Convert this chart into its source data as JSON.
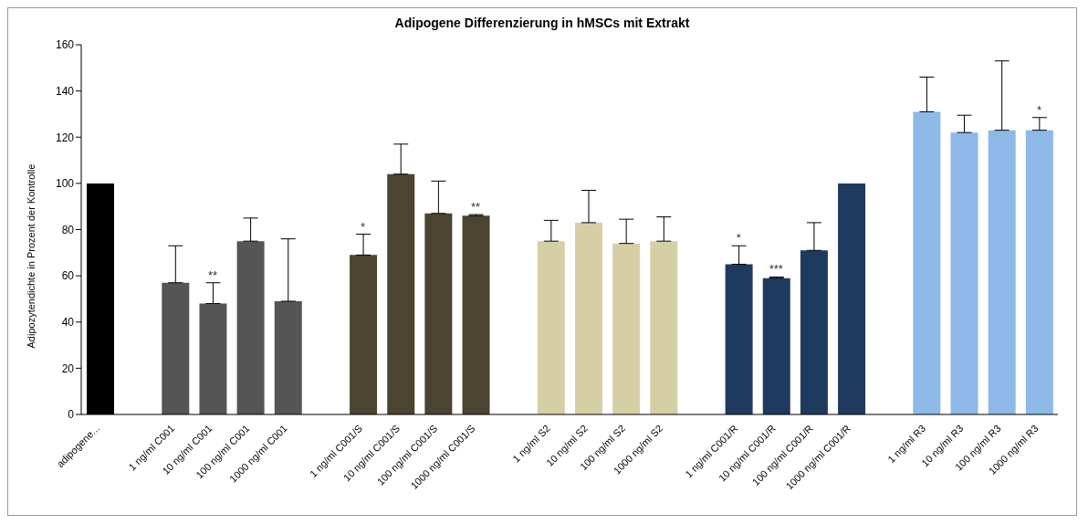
{
  "chart_data": {
    "type": "bar",
    "title": "Adipogene Differenzierung in hMSCs mit Extrakt",
    "ylabel": "Adipozytendichte in Prozent der Kontrolle",
    "categories": [
      "adipogene...",
      null,
      "1 ng/ml C001",
      "10 ng/ml C001",
      "100 ng/ml C001",
      "1000 ng/ml C001",
      null,
      "1 ng/ml C001/S",
      "10 ng/ml C001/S",
      "100 ng/ml C001/S",
      "1000 ng/ml C001/S",
      null,
      "1 ng/ml S2",
      "10 ng/ml S2",
      "100 ng/ml S2",
      "1000 ng/ml S2",
      null,
      "1 ng/ml C001/R",
      "10 ng/ml C001/R",
      "100 ng/ml C001/R",
      "1000 ng/ml C001/R",
      null,
      "1 ng/ml R3",
      "10 ng/ml R3",
      "100 ng/ml R3",
      "1000 ng/ml R3"
    ],
    "values": [
      100,
      null,
      57,
      48,
      75,
      49,
      null,
      69,
      104,
      87,
      86,
      null,
      75,
      83,
      74,
      75,
      null,
      65,
      59,
      71,
      100,
      null,
      131,
      122,
      123,
      123
    ],
    "errors": [
      null,
      null,
      [
        57,
        73
      ],
      [
        48,
        57
      ],
      [
        75,
        85
      ],
      [
        49,
        76
      ],
      null,
      [
        69,
        78
      ],
      [
        104,
        117
      ],
      [
        87,
        101
      ],
      [
        86,
        86.5
      ],
      null,
      [
        75,
        84
      ],
      [
        83,
        97
      ],
      [
        74,
        84.5
      ],
      [
        75,
        85.5
      ],
      null,
      [
        65,
        73
      ],
      [
        59,
        59.5
      ],
      [
        71,
        83
      ],
      null,
      null,
      [
        131,
        146
      ],
      [
        122,
        129.5
      ],
      [
        123,
        153
      ],
      [
        123,
        128.5
      ]
    ],
    "colors": [
      "#000000",
      null,
      "#555555",
      "#555555",
      "#555555",
      "#555555",
      null,
      "#4a4430",
      "#4a4430",
      "#4a4430",
      "#4a4430",
      null,
      "#d6cfa5",
      "#d6cfa5",
      "#d6cfa5",
      "#d6cfa5",
      null,
      "#1f3a5f",
      "#1f3a5f",
      "#1f3a5f",
      "#1f3a5f",
      null,
      "#8db8e8",
      "#8db8e8",
      "#8db8e8",
      "#8db8e8"
    ],
    "ylim": [
      0,
      160
    ],
    "yticks": [
      0,
      20,
      40,
      60,
      80,
      100,
      120,
      140,
      160
    ],
    "grid": false,
    "legend": false,
    "annotations": [
      {
        "text": "**",
        "x": "10 ng/ml C001",
        "y": 57
      },
      {
        "text": "*",
        "x": "1 ng/ml C001/S",
        "y": 78
      },
      {
        "text": "**",
        "x": "1000 ng/ml C001/S",
        "y": 86.5
      },
      {
        "text": "*",
        "x": "1 ng/ml C001/R",
        "y": 73
      },
      {
        "text": "***",
        "x": "10 ng/ml C001/R",
        "y": 59.5
      },
      {
        "text": "*",
        "x": "1000 ng/ml R3",
        "y": 128.5
      }
    ]
  }
}
